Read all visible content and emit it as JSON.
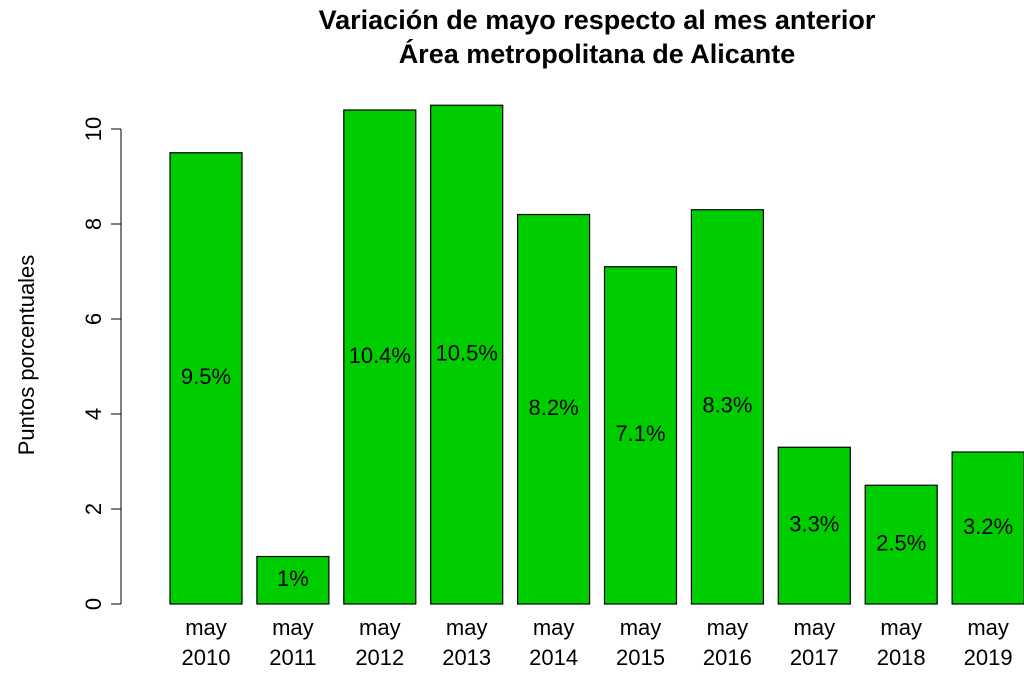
{
  "chart_data": {
    "type": "bar",
    "title": "Variación de mayo respecto al mes anterior",
    "subtitle": "Área metropolitana de Alicante",
    "y_label": "Puntos porcentuales",
    "categories": [
      "may\n2010",
      "may\n2011",
      "may\n2012",
      "may\n2013",
      "may\n2014",
      "may\n2015",
      "may\n2016",
      "may\n2017",
      "may\n2018",
      "may\n2019"
    ],
    "values": [
      9.5,
      1,
      10.4,
      10.5,
      8.2,
      7.1,
      8.3,
      3.3,
      2.5,
      3.2
    ],
    "value_labels": [
      "9.5%",
      "1%",
      "10.4%",
      "10.5%",
      "8.2%",
      "7.1%",
      "8.3%",
      "3.3%",
      "2.5%",
      "3.2%"
    ],
    "color": "#00cd00",
    "ylim": [
      0,
      10.6
    ],
    "yticks": [
      0,
      2,
      4,
      6,
      8,
      10
    ],
    "grid": false
  }
}
